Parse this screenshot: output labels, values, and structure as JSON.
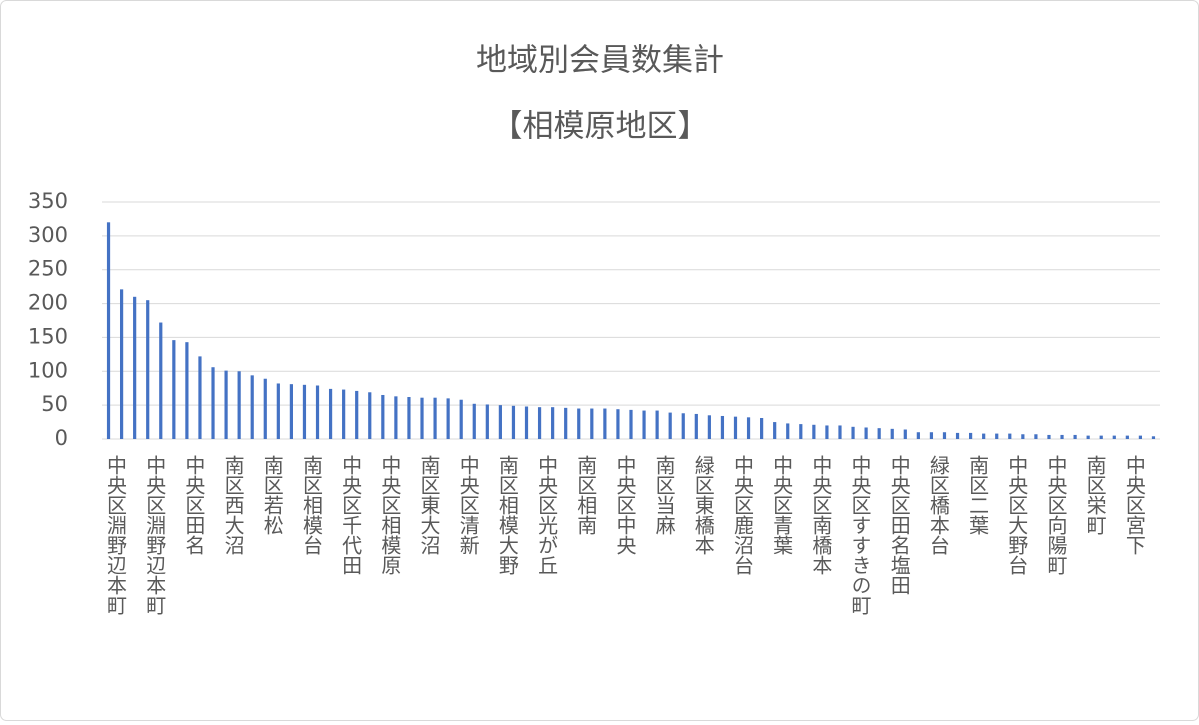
{
  "chart_data": {
    "type": "bar",
    "title": "地域別会員数集計",
    "subtitle": "【相模原地区】",
    "categories": [
      "中央区淵野辺本町",
      null,
      null,
      "中央区淵野辺本町",
      null,
      null,
      "中央区田名",
      null,
      null,
      "南区西大沼",
      null,
      null,
      "南区若松",
      null,
      null,
      "南区相模台",
      null,
      null,
      "中央区千代田",
      null,
      null,
      "中央区相模原",
      null,
      null,
      "南区東大沼",
      null,
      null,
      "中央区清新",
      null,
      null,
      "南区相模大野",
      null,
      null,
      "中央区光が丘",
      null,
      null,
      "南区相南",
      null,
      null,
      "中央区中央",
      null,
      null,
      "南区当麻",
      null,
      null,
      "緑区東橋本",
      null,
      null,
      "中央区鹿沼台",
      null,
      null,
      "中央区青葉",
      null,
      null,
      "中央区南橋本",
      null,
      null,
      "中央区すすきの町",
      null,
      null,
      "中央区田名塩田",
      null,
      null,
      "緑区橋本台",
      null,
      null,
      "南区二葉",
      null,
      null,
      "中央区大野台",
      null,
      null,
      "中央区向陽町",
      null,
      null,
      "南区栄町",
      null,
      null,
      "中央区宮下",
      null,
      null
    ],
    "values": [
      320,
      221,
      210,
      205,
      172,
      146,
      143,
      122,
      106,
      101,
      100,
      94,
      89,
      82,
      81,
      80,
      79,
      74,
      73,
      71,
      69,
      65,
      63,
      62,
      61,
      61,
      60,
      58,
      52,
      51,
      50,
      49,
      48,
      47,
      47,
      46,
      45,
      45,
      45,
      44,
      43,
      42,
      42,
      39,
      38,
      37,
      35,
      34,
      33,
      32,
      31,
      25,
      23,
      22,
      21,
      20,
      20,
      18,
      17,
      16,
      15,
      14,
      10,
      10,
      10,
      9,
      9,
      8,
      8,
      8,
      7,
      7,
      6,
      6,
      6,
      5,
      5,
      5,
      5,
      5,
      4
    ],
    "color": "#4472c4",
    "ylim": [
      0,
      350
    ],
    "yticks": [
      0,
      50,
      100,
      150,
      200,
      250,
      300,
      350
    ],
    "grid": true
  }
}
